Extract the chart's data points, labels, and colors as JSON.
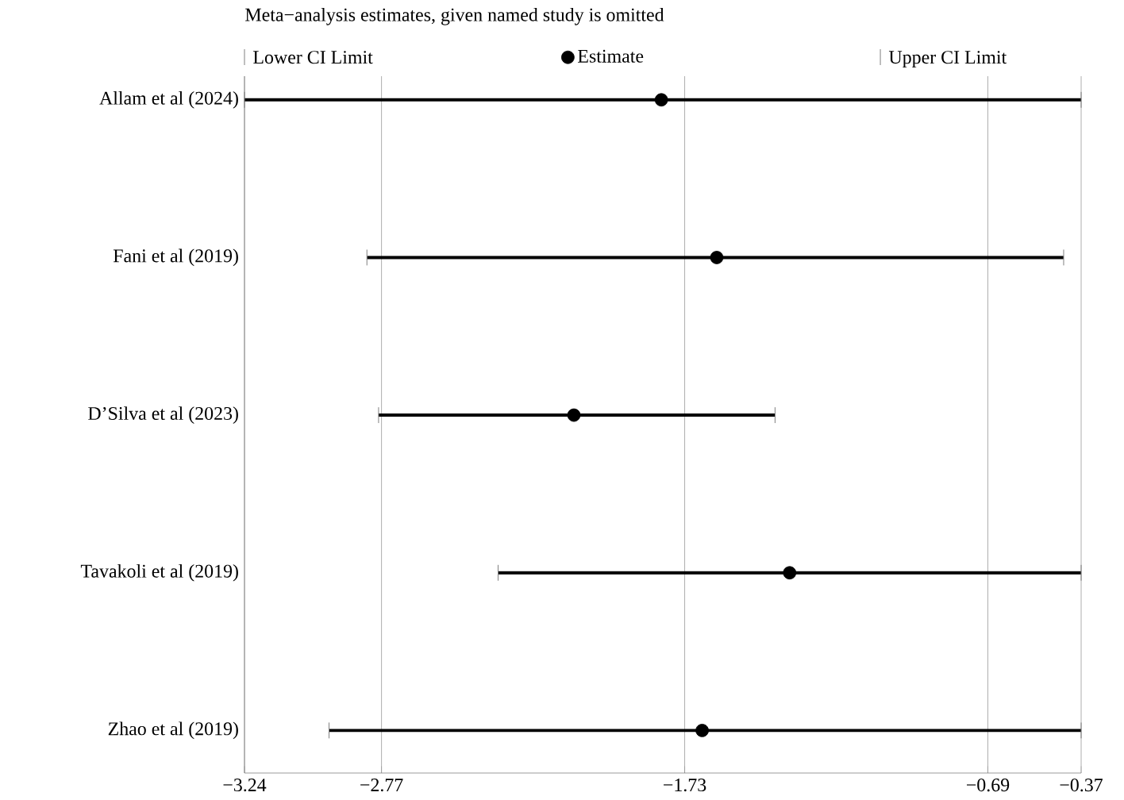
{
  "chart_data": {
    "type": "scatter",
    "orientation": "horizontal",
    "title": "Meta−analysis estimates, given named study is omitted",
    "categories": [
      "Allam et al (2024)",
      "Fani et al (2019)",
      "D’Silva et al (2023)",
      "Tavakoli et al (2019)",
      "Zhao et al (2019)"
    ],
    "series": [
      {
        "name": "Estimate",
        "color": "#000000",
        "marker": "circle",
        "values": [
          -1.81,
          -1.62,
          -2.11,
          -1.37,
          -1.67
        ],
        "errors": [
          [
            -3.24,
            -0.37
          ],
          [
            -2.82,
            -0.43
          ],
          [
            -2.78,
            -1.42
          ],
          [
            -2.37,
            -0.37
          ],
          [
            -2.95,
            -0.37
          ]
        ]
      }
    ],
    "annotations": [
      "Lower CI Limit",
      "Upper CI Limit"
    ],
    "xlim": [
      -3.24,
      -0.37
    ],
    "xticks": [
      {
        "value": -3.24,
        "label": "−3.24"
      },
      {
        "value": -2.77,
        "label": "−2.77"
      },
      {
        "value": -1.73,
        "label": "−1.73"
      },
      {
        "value": -0.69,
        "label": "−0.69"
      },
      {
        "value": -0.37,
        "label": "−0.37"
      }
    ],
    "grid": "x",
    "legend": "top"
  }
}
